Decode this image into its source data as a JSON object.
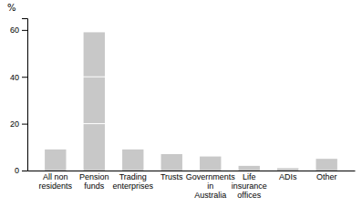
{
  "chart_data": {
    "type": "bar",
    "categories": [
      "All non\nresidents",
      "Pension\nfunds",
      "Trading\nenterprises",
      "Trusts",
      "Governments\nin\nAustralia",
      "Life\ninsurance\noffices",
      "ADIs",
      "Other"
    ],
    "values": [
      9,
      59,
      9,
      7,
      6,
      2,
      1,
      5
    ],
    "color": "#c8c8c8",
    "ylabel": "%",
    "ylim": [
      0,
      65
    ],
    "yticks": [
      0,
      20,
      40,
      60
    ],
    "grid": true
  }
}
